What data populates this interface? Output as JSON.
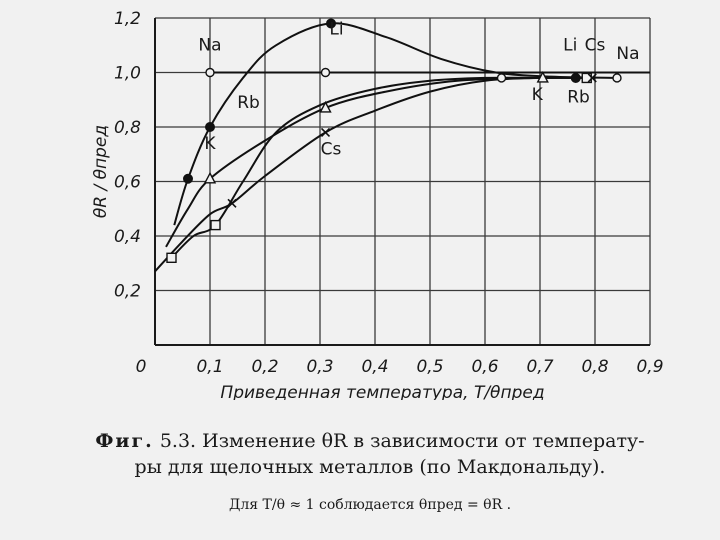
{
  "chart_data": {
    "type": "line",
    "xlabel": "Приведенная температура, T/θпред",
    "ylabel": "θR / θпред",
    "xlim": [
      0,
      0.9
    ],
    "ylim": [
      0,
      1.2
    ],
    "x_ticks": [
      "0",
      "0,1",
      "0,2",
      "0,3",
      "0,4",
      "0,5",
      "0,6",
      "0,7",
      "0,8",
      "0,9"
    ],
    "y_ticks": [
      "0,2",
      "0,4",
      "0,6",
      "0,8",
      "1,0",
      "1,2"
    ],
    "grid": true,
    "series": [
      {
        "name": "Na",
        "marker": "open-circle",
        "points": [
          [
            0.1,
            1.0
          ],
          [
            0.31,
            1.0
          ],
          [
            0.63,
            0.98
          ],
          [
            0.84,
            0.98
          ]
        ],
        "curve": [
          [
            0.1,
            1.0
          ],
          [
            0.9,
            1.0
          ]
        ]
      },
      {
        "name": "Li",
        "marker": "filled-circle",
        "points": [
          [
            0.06,
            0.61
          ],
          [
            0.1,
            0.8
          ],
          [
            0.32,
            1.18
          ],
          [
            0.765,
            0.98
          ]
        ],
        "curve": [
          [
            0.035,
            0.44
          ],
          [
            0.06,
            0.61
          ],
          [
            0.1,
            0.8
          ],
          [
            0.16,
            0.98
          ],
          [
            0.22,
            1.1
          ],
          [
            0.32,
            1.18
          ],
          [
            0.42,
            1.13
          ],
          [
            0.52,
            1.05
          ],
          [
            0.62,
            1.0
          ],
          [
            0.72,
            0.985
          ],
          [
            0.84,
            0.98
          ]
        ]
      },
      {
        "name": "Rb",
        "marker": "open-square",
        "points": [
          [
            0.03,
            0.32
          ],
          [
            0.11,
            0.44
          ],
          [
            0.785,
            0.98
          ]
        ],
        "curve": [
          [
            0.03,
            0.32
          ],
          [
            0.07,
            0.4
          ],
          [
            0.11,
            0.44
          ],
          [
            0.16,
            0.6
          ],
          [
            0.22,
            0.78
          ],
          [
            0.3,
            0.88
          ],
          [
            0.4,
            0.94
          ],
          [
            0.5,
            0.97
          ],
          [
            0.6,
            0.98
          ],
          [
            0.7,
            0.98
          ],
          [
            0.8,
            0.98
          ]
        ]
      },
      {
        "name": "K",
        "marker": "open-triangle",
        "points": [
          [
            0.1,
            0.61
          ],
          [
            0.31,
            0.87
          ],
          [
            0.705,
            0.98
          ]
        ],
        "curve": [
          [
            0.02,
            0.36
          ],
          [
            0.06,
            0.5
          ],
          [
            0.1,
            0.61
          ],
          [
            0.2,
            0.75
          ],
          [
            0.31,
            0.87
          ],
          [
            0.42,
            0.93
          ],
          [
            0.55,
            0.97
          ],
          [
            0.7,
            0.98
          ],
          [
            0.8,
            0.98
          ]
        ]
      },
      {
        "name": "Cs",
        "marker": "cross",
        "points": [
          [
            0.14,
            0.52
          ],
          [
            0.31,
            0.78
          ],
          [
            0.795,
            0.98
          ]
        ],
        "curve": [
          [
            0.0,
            0.27
          ],
          [
            0.05,
            0.38
          ],
          [
            0.1,
            0.48
          ],
          [
            0.14,
            0.52
          ],
          [
            0.2,
            0.62
          ],
          [
            0.31,
            0.78
          ],
          [
            0.4,
            0.86
          ],
          [
            0.5,
            0.93
          ],
          [
            0.6,
            0.97
          ],
          [
            0.7,
            0.98
          ],
          [
            0.8,
            0.98
          ]
        ]
      }
    ],
    "annotations": [
      {
        "text": "Na",
        "at": [
          0.1,
          1.08
        ]
      },
      {
        "text": "Li",
        "at": [
          0.33,
          1.14
        ]
      },
      {
        "text": "Rb",
        "at": [
          0.17,
          0.87
        ]
      },
      {
        "text": "K",
        "at": [
          0.1,
          0.72
        ]
      },
      {
        "text": "Cs",
        "at": [
          0.32,
          0.7
        ]
      },
      {
        "text": "Li",
        "at": [
          0.755,
          1.08
        ]
      },
      {
        "text": "Cs",
        "at": [
          0.8,
          1.08
        ]
      },
      {
        "text": "Na",
        "at": [
          0.86,
          1.05
        ]
      },
      {
        "text": "K",
        "at": [
          0.695,
          0.9
        ]
      },
      {
        "text": "Rb",
        "at": [
          0.77,
          0.89
        ]
      }
    ]
  },
  "caption": {
    "fig_label": "Фиг.",
    "line1": "5.3. Изменение θR в зависимости от температу-",
    "line2": "ры для щелочных металлов (по Макдональду).",
    "note": "Для T/θ ≈ 1 соблюдается θпред = θR ."
  }
}
